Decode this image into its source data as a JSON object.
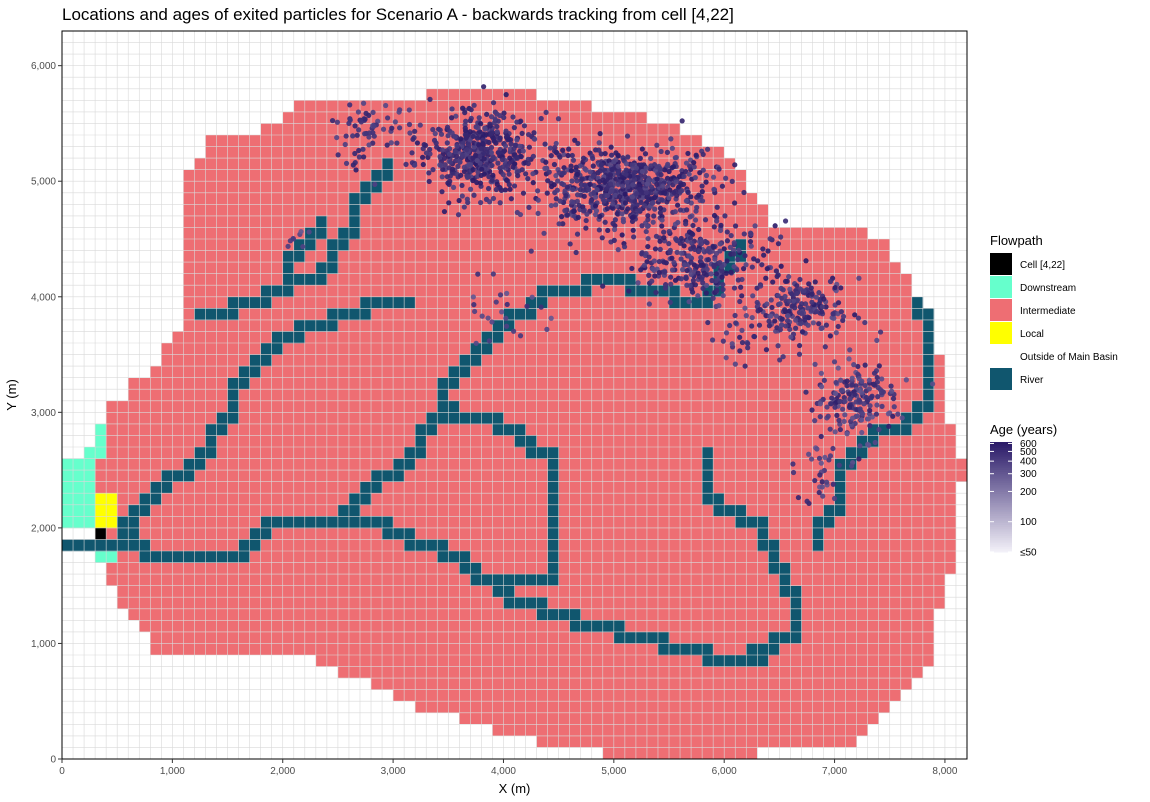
{
  "chart_data": {
    "type": "scatter",
    "title": "Locations and ages of exited particles for Scenario A - backwards tracking from cell [4,22]",
    "xlabel": "X (m)",
    "ylabel": "Y (m)",
    "xlim": [
      0,
      8200
    ],
    "ylim": [
      0,
      6300
    ],
    "cell_size_m": 100,
    "grid": true,
    "x_ticks": [
      {
        "value": 0,
        "label": "0"
      },
      {
        "value": 1000,
        "label": "1,000"
      },
      {
        "value": 2000,
        "label": "2,000"
      },
      {
        "value": 3000,
        "label": "3,000"
      },
      {
        "value": 4000,
        "label": "4,000"
      },
      {
        "value": 5000,
        "label": "5,000"
      },
      {
        "value": 6000,
        "label": "6,000"
      },
      {
        "value": 7000,
        "label": "7,000"
      },
      {
        "value": 8000,
        "label": "8,000"
      }
    ],
    "y_ticks": [
      {
        "value": 0,
        "label": "0"
      },
      {
        "value": 1000,
        "label": "1,000"
      },
      {
        "value": 2000,
        "label": "2,000"
      },
      {
        "value": 3000,
        "label": "3,000"
      },
      {
        "value": 4000,
        "label": "4,000"
      },
      {
        "value": 5000,
        "label": "5,000"
      },
      {
        "value": 6000,
        "label": "6,000"
      }
    ],
    "legend_placement": "right",
    "flowpath_legend": {
      "title": "Flowpath",
      "items": [
        {
          "label": "Cell [4,22]",
          "color": "#000000"
        },
        {
          "label": "Downstream",
          "color": "#66ffcc"
        },
        {
          "label": "Intermediate",
          "color": "#ee6e73"
        },
        {
          "label": "Local",
          "color": "#ffff00"
        },
        {
          "label": "Outside of Main Basin",
          "color": "#ffffff"
        },
        {
          "label": "River",
          "color": "#10566e"
        }
      ]
    },
    "age_legend": {
      "title": "Age (years)",
      "scale": "log",
      "range": [
        50,
        620
      ],
      "color_low": "#f4f2f9",
      "color_high": "#2a1a68",
      "ticks": [
        {
          "value": 600,
          "label": "600"
        },
        {
          "value": 500,
          "label": "500"
        },
        {
          "value": 400,
          "label": "400"
        },
        {
          "value": 300,
          "label": "300"
        },
        {
          "value": 200,
          "label": "200"
        },
        {
          "value": 100,
          "label": "100"
        },
        {
          "value": 50,
          "label": "≤50"
        }
      ]
    },
    "basin_rows": [
      {
        "y": 0,
        "x0": 4900,
        "x1": 6200
      },
      {
        "y": 100,
        "x0": 4300,
        "x1": 7100
      },
      {
        "y": 200,
        "x0": 3900,
        "x1": 7200
      },
      {
        "y": 300,
        "x0": 3600,
        "x1": 7300
      },
      {
        "y": 400,
        "x0": 3200,
        "x1": 7400
      },
      {
        "y": 500,
        "x0": 3000,
        "x1": 7500
      },
      {
        "y": 600,
        "x0": 2800,
        "x1": 7600
      },
      {
        "y": 700,
        "x0": 2500,
        "x1": 7700
      },
      {
        "y": 800,
        "x0": 2300,
        "x1": 7800
      },
      {
        "y": 900,
        "x0": 800,
        "x1": 7800
      },
      {
        "y": 1000,
        "x0": 800,
        "x1": 7800
      },
      {
        "y": 1100,
        "x0": 700,
        "x1": 7800
      },
      {
        "y": 1200,
        "x0": 600,
        "x1": 7800
      },
      {
        "y": 1300,
        "x0": 500,
        "x1": 7900
      },
      {
        "y": 1400,
        "x0": 500,
        "x1": 7900
      },
      {
        "y": 1500,
        "x0": 400,
        "x1": 7900
      },
      {
        "y": 1600,
        "x0": 400,
        "x1": 8000
      },
      {
        "y": 1700,
        "x0": 300,
        "x1": 8000
      },
      {
        "y": 1800,
        "x0": 300,
        "x1": 8000
      },
      {
        "y": 1900,
        "x0": 300,
        "x1": 8000
      },
      {
        "y": 2000,
        "x0": 300,
        "x1": 8000
      },
      {
        "y": 2100,
        "x0": 300,
        "x1": 8000
      },
      {
        "y": 2200,
        "x0": 300,
        "x1": 8000
      },
      {
        "y": 2300,
        "x0": 300,
        "x1": 8000
      },
      {
        "y": 2400,
        "x0": 300,
        "x1": 8100
      },
      {
        "y": 2500,
        "x0": 300,
        "x1": 8100
      },
      {
        "y": 2600,
        "x0": 300,
        "x1": 8000
      },
      {
        "y": 2700,
        "x0": 300,
        "x1": 8000
      },
      {
        "y": 2800,
        "x0": 400,
        "x1": 8000
      },
      {
        "y": 2900,
        "x0": 400,
        "x1": 7900
      },
      {
        "y": 3000,
        "x0": 400,
        "x1": 7900
      },
      {
        "y": 3100,
        "x0": 600,
        "x1": 7900
      },
      {
        "y": 3200,
        "x0": 600,
        "x1": 7900
      },
      {
        "y": 3300,
        "x0": 800,
        "x1": 7900
      },
      {
        "y": 3400,
        "x0": 900,
        "x1": 7900
      },
      {
        "y": 3500,
        "x0": 900,
        "x1": 7800
      },
      {
        "y": 3600,
        "x0": 1000,
        "x1": 7800
      },
      {
        "y": 3700,
        "x0": 1100,
        "x1": 7800
      },
      {
        "y": 3800,
        "x0": 1100,
        "x1": 7800
      },
      {
        "y": 3900,
        "x0": 1100,
        "x1": 7700
      },
      {
        "y": 4000,
        "x0": 1100,
        "x1": 7600
      },
      {
        "y": 4100,
        "x0": 1100,
        "x1": 7600
      },
      {
        "y": 4200,
        "x0": 1100,
        "x1": 7500
      },
      {
        "y": 4300,
        "x0": 1100,
        "x1": 7400
      },
      {
        "y": 4400,
        "x0": 1100,
        "x1": 7400
      },
      {
        "y": 4500,
        "x0": 1100,
        "x1": 7200
      },
      {
        "y": 4600,
        "x0": 1100,
        "x1": 6300
      },
      {
        "y": 4700,
        "x0": 1100,
        "x1": 6300
      },
      {
        "y": 4800,
        "x0": 1100,
        "x1": 6200
      },
      {
        "y": 4900,
        "x0": 1100,
        "x1": 6100
      },
      {
        "y": 5000,
        "x0": 1100,
        "x1": 6100
      },
      {
        "y": 5100,
        "x0": 1200,
        "x1": 6000
      },
      {
        "y": 5200,
        "x0": 1300,
        "x1": 5900
      },
      {
        "y": 5300,
        "x0": 1300,
        "x1": 5700
      },
      {
        "y": 5400,
        "x0": 1800,
        "x1": 5500
      },
      {
        "y": 5500,
        "x0": 2000,
        "x1": 5200
      },
      {
        "y": 5600,
        "x0": 2100,
        "x1": 4700
      },
      {
        "y": 5700,
        "x0": 3300,
        "x1": 4200
      }
    ],
    "river_paths": [
      [
        [
          0,
          1800
        ],
        [
          400,
          1800
        ],
        [
          500,
          1900
        ],
        [
          500,
          2000
        ],
        [
          600,
          2100
        ],
        [
          700,
          2200
        ],
        [
          900,
          2400
        ],
        [
          1100,
          2500
        ],
        [
          1300,
          2700
        ],
        [
          1500,
          3000
        ],
        [
          1700,
          3400
        ],
        [
          1900,
          3600
        ],
        [
          2100,
          3700
        ],
        [
          2400,
          3800
        ],
        [
          2700,
          3900
        ],
        [
          3100,
          3900
        ]
      ],
      [
        [
          500,
          1900
        ],
        [
          700,
          1700
        ],
        [
          1200,
          1700
        ],
        [
          1600,
          1800
        ],
        [
          1800,
          2000
        ],
        [
          2400,
          2000
        ],
        [
          2600,
          2200
        ],
        [
          2800,
          2400
        ],
        [
          3000,
          2500
        ],
        [
          3200,
          2700
        ],
        [
          3400,
          3000
        ],
        [
          3700,
          3500
        ],
        [
          4000,
          3800
        ],
        [
          4300,
          4000
        ],
        [
          4700,
          4100
        ],
        [
          5100,
          4000
        ]
      ],
      [
        [
          1800,
          2000
        ],
        [
          2600,
          2000
        ],
        [
          2900,
          1900
        ],
        [
          3100,
          1800
        ],
        [
          3400,
          1700
        ],
        [
          3700,
          1500
        ],
        [
          4000,
          1300
        ],
        [
          4300,
          1200
        ],
        [
          4600,
          1100
        ],
        [
          5000,
          1000
        ],
        [
          5400,
          900
        ],
        [
          5800,
          800
        ],
        [
          6300,
          800
        ]
      ],
      [
        [
          1200,
          3800
        ],
        [
          1500,
          3900
        ],
        [
          1800,
          4000
        ],
        [
          2000,
          4100
        ],
        [
          2400,
          4300
        ],
        [
          2600,
          4600
        ],
        [
          2700,
          4900
        ],
        [
          2900,
          5100
        ]
      ],
      [
        [
          3400,
          3000
        ],
        [
          3500,
          2900
        ],
        [
          3900,
          2800
        ],
        [
          4100,
          2700
        ],
        [
          4200,
          2600
        ],
        [
          4400,
          2500
        ]
      ],
      [
        [
          5800,
          2600
        ],
        [
          5800,
          2300
        ],
        [
          5900,
          2100
        ],
        [
          6100,
          2000
        ],
        [
          6300,
          1900
        ],
        [
          6400,
          1700
        ],
        [
          6500,
          1500
        ],
        [
          6600,
          1300
        ],
        [
          6600,
          1000
        ],
        [
          6400,
          900
        ],
        [
          6200,
          800
        ]
      ],
      [
        [
          6800,
          1800
        ],
        [
          7000,
          2200
        ],
        [
          7100,
          2600
        ],
        [
          7300,
          2800
        ],
        [
          7600,
          2900
        ],
        [
          7800,
          3100
        ],
        [
          7800,
          3800
        ],
        [
          7700,
          3900
        ]
      ],
      [
        [
          4400,
          2500
        ],
        [
          4400,
          1500
        ],
        [
          4000,
          1400
        ]
      ],
      [
        [
          5100,
          4000
        ],
        [
          5500,
          3900
        ],
        [
          5900,
          4100
        ],
        [
          6100,
          4400
        ]
      ],
      [
        [
          2300,
          4600
        ],
        [
          2200,
          4400
        ],
        [
          2000,
          4200
        ]
      ]
    ],
    "downstream_cells": [
      [
        200,
        2000
      ],
      [
        200,
        2100
      ],
      [
        200,
        2200
      ],
      [
        200,
        2300
      ],
      [
        200,
        2400
      ],
      [
        200,
        2500
      ],
      [
        200,
        2600
      ],
      [
        300,
        2600
      ],
      [
        300,
        2700
      ],
      [
        300,
        2800
      ],
      [
        100,
        2100
      ],
      [
        100,
        2200
      ],
      [
        100,
        2300
      ],
      [
        100,
        2400
      ],
      [
        100,
        2500
      ],
      [
        0,
        2200
      ],
      [
        0,
        2300
      ],
      [
        0,
        2400
      ],
      [
        0,
        2500
      ],
      [
        0,
        2000
      ],
      [
        0,
        2100
      ],
      [
        100,
        2000
      ],
      [
        300,
        1700
      ],
      [
        400,
        1700
      ]
    ],
    "local_cells": [
      [
        300,
        2000
      ],
      [
        400,
        2000
      ],
      [
        300,
        2100
      ],
      [
        400,
        2100
      ],
      [
        300,
        2200
      ],
      [
        400,
        2200
      ]
    ],
    "target_cell": [
      300,
      1900
    ],
    "particle_clusters": [
      {
        "cx": 3750,
        "cy": 5250,
        "sx": 450,
        "sy": 300,
        "n": 450,
        "age_min": 380,
        "age_max": 620
      },
      {
        "cx": 5100,
        "cy": 4950,
        "sx": 650,
        "sy": 280,
        "n": 700,
        "age_min": 350,
        "age_max": 620
      },
      {
        "cx": 5800,
        "cy": 4300,
        "sx": 500,
        "sy": 300,
        "n": 280,
        "age_min": 350,
        "age_max": 620
      },
      {
        "cx": 6700,
        "cy": 3900,
        "sx": 350,
        "sy": 250,
        "n": 180,
        "age_min": 330,
        "age_max": 600
      },
      {
        "cx": 7200,
        "cy": 3100,
        "sx": 300,
        "sy": 300,
        "n": 180,
        "age_min": 300,
        "age_max": 580
      },
      {
        "cx": 6900,
        "cy": 2500,
        "sx": 200,
        "sy": 300,
        "n": 30,
        "age_min": 300,
        "age_max": 550
      },
      {
        "cx": 2800,
        "cy": 5450,
        "sx": 300,
        "sy": 200,
        "n": 60,
        "age_min": 350,
        "age_max": 550
      },
      {
        "cx": 4000,
        "cy": 3800,
        "sx": 300,
        "sy": 300,
        "n": 25,
        "age_min": 300,
        "age_max": 500
      },
      {
        "cx": 2100,
        "cy": 4500,
        "sx": 100,
        "sy": 80,
        "n": 8,
        "age_min": 300,
        "age_max": 450
      },
      {
        "cx": 6200,
        "cy": 3700,
        "sx": 300,
        "sy": 250,
        "n": 40,
        "age_min": 320,
        "age_max": 560
      }
    ]
  }
}
